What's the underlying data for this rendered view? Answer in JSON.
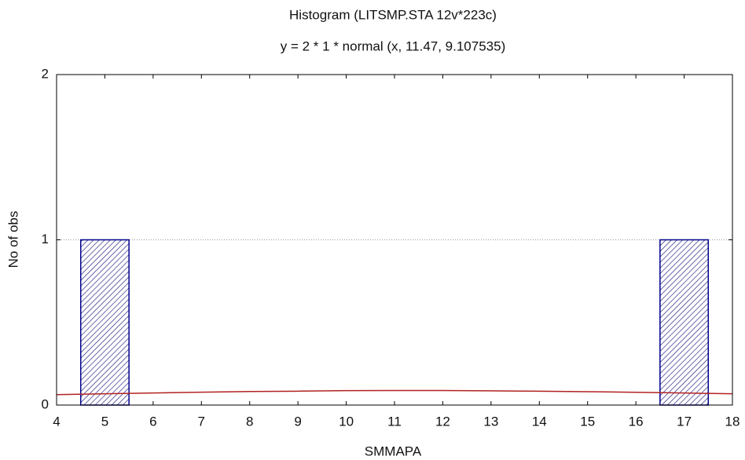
{
  "chart_data": {
    "type": "histogram",
    "title": "Histogram (LITSMP.STA 12v*223c)",
    "subtitle": "y = 2 * 1 * normal (x, 11.47, 9.107535)",
    "xlabel": "SMMAPA",
    "ylabel": "No of obs",
    "bins": [
      4.5,
      5.5,
      6.5,
      7.5,
      8.5,
      9.5,
      10.5,
      11.5,
      12.5,
      13.5,
      14.5,
      15.5,
      16.5,
      17.5
    ],
    "values": [
      1,
      0,
      0,
      0,
      0,
      0,
      0,
      0,
      0,
      0,
      0,
      0,
      1
    ],
    "color": "#00008b",
    "curve": {
      "color": "#b22222",
      "x": [
        4,
        5,
        6,
        7,
        8,
        9,
        10,
        11,
        12,
        13,
        14,
        15,
        16,
        17,
        18
      ],
      "y": [
        0.063,
        0.068,
        0.073,
        0.078,
        0.082,
        0.084,
        0.087,
        0.088,
        0.088,
        0.086,
        0.084,
        0.081,
        0.077,
        0.073,
        0.068
      ]
    },
    "xlim": [
      4,
      18
    ],
    "xticks": [
      4,
      5,
      6,
      7,
      8,
      9,
      10,
      11,
      12,
      13,
      14,
      15,
      16,
      17,
      18
    ],
    "ylim": [
      0,
      2
    ],
    "yticks": [
      0,
      1,
      2
    ],
    "grid": true
  }
}
